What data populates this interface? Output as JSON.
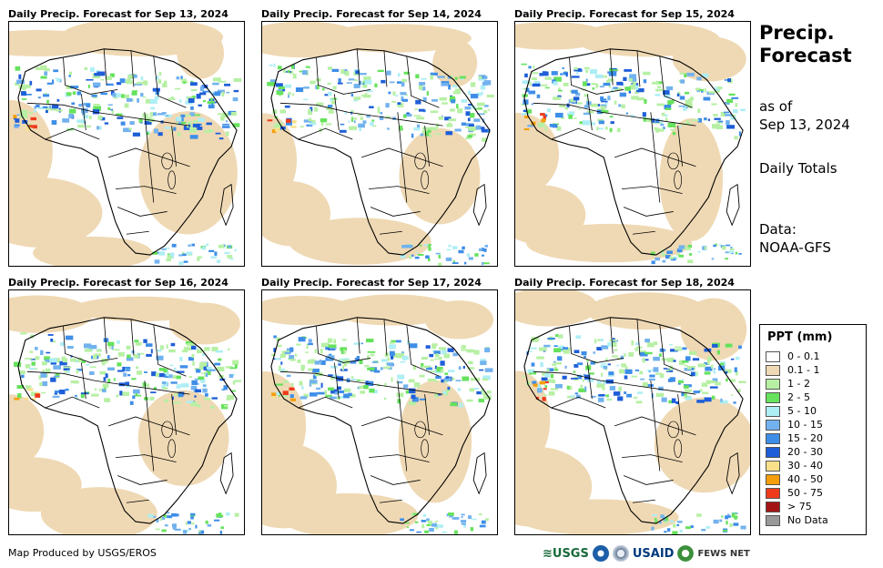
{
  "panels": [
    {
      "title": "Daily Precip. Forecast for Sep 13, 2024"
    },
    {
      "title": "Daily Precip. Forecast for Sep 14, 2024"
    },
    {
      "title": "Daily Precip. Forecast for Sep 15, 2024"
    },
    {
      "title": "Daily Precip. Forecast for Sep 16, 2024"
    },
    {
      "title": "Daily Precip. Forecast for Sep 17, 2024"
    },
    {
      "title": "Daily Precip. Forecast for Sep 18, 2024"
    }
  ],
  "sidebar": {
    "title_line1": "Precip.",
    "title_line2": "Forecast",
    "asof_line1": "as of",
    "asof_line2": "Sep 13, 2024",
    "totals": "Daily Totals",
    "data_line1": "Data:",
    "data_line2": "NOAA-GFS"
  },
  "legend": {
    "title": "PPT (mm)",
    "items": [
      {
        "label": "0 - 0.1",
        "color": "#ffffff"
      },
      {
        "label": "0.1 - 1",
        "color": "#efd9b4"
      },
      {
        "label": "1 - 2",
        "color": "#b7f0a4"
      },
      {
        "label": "2 - 5",
        "color": "#66e25c"
      },
      {
        "label": "5 - 10",
        "color": "#aeeef5"
      },
      {
        "label": "10 - 15",
        "color": "#72b2ee"
      },
      {
        "label": "15 - 20",
        "color": "#3e8ee8"
      },
      {
        "label": "20 - 30",
        "color": "#1e5ed8"
      },
      {
        "label": "30 - 40",
        "color": "#fae08a"
      },
      {
        "label": "40 - 50",
        "color": "#f59e0b"
      },
      {
        "label": "50 - 75",
        "color": "#ef3b1b"
      },
      {
        "label": "> 75",
        "color": "#a31515"
      },
      {
        "label": "No Data",
        "color": "#999999"
      }
    ]
  },
  "footer": {
    "credit": "Map Produced by USGS/EROS",
    "logo_usgs": "≋USGS",
    "logo_usaid": "USAID",
    "logo_fews": "FEWS NET"
  }
}
